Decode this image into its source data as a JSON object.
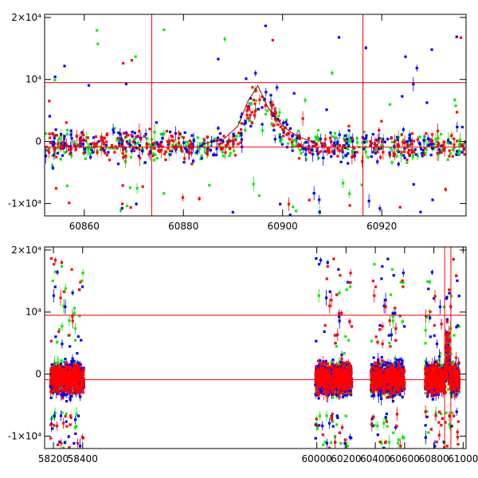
{
  "colors": {
    "red": "#ff0000",
    "green": "#00ee00",
    "blue": "#0000ff",
    "axis": "#000000"
  },
  "chart_data": [
    {
      "type": "scatter",
      "panel": "top",
      "xlim": [
        60852,
        60937
      ],
      "ylim": [
        -12000,
        20500
      ],
      "xticks": [
        60860,
        60880,
        60900,
        60920
      ],
      "xtick_labels": [
        "60860",
        "60880",
        "60900",
        "60920"
      ],
      "yticks": [
        -10000,
        0,
        10000,
        20000
      ],
      "ytick_labels": [
        "-1×10⁴",
        "0",
        "10⁴",
        "2×10⁴"
      ],
      "hlines": [
        9500,
        -900
      ],
      "vlines": [
        60873.6,
        60916.2
      ],
      "legend": "none",
      "grid": false,
      "series": [
        {
          "color": "green",
          "density": "dense around baseline, scattered outliers"
        },
        {
          "color": "blue",
          "density": "dense around baseline, scattered outliers"
        },
        {
          "color": "red",
          "density": "dense around baseline, flare peak near 60895"
        }
      ],
      "flare": {
        "peak_x": 60895,
        "peak_y": 9000
      },
      "envelope_curve": [
        [
          60884,
          -400
        ],
        [
          60888,
          300
        ],
        [
          60891,
          2500
        ],
        [
          60893,
          6500
        ],
        [
          60895,
          9000
        ],
        [
          60897,
          5500
        ],
        [
          60900,
          2500
        ],
        [
          60903,
          800
        ],
        [
          60907,
          -300
        ]
      ]
    },
    {
      "type": "scatter",
      "panel": "bottom",
      "xlim": [
        58140,
        61020
      ],
      "ylim": [
        -12000,
        20500
      ],
      "xticks": [
        58200,
        58400,
        60000,
        60200,
        60400,
        60600,
        60800,
        61000
      ],
      "xtick_labels": [
        "58200",
        "58400",
        "60000",
        "60200",
        "60400",
        "60600",
        "60800",
        "61000"
      ],
      "yticks": [
        -10000,
        0,
        10000,
        20000
      ],
      "ytick_labels": [
        "-1×10⁴",
        "0",
        "10⁴",
        "2×10⁴"
      ],
      "hlines": [
        9500,
        -900
      ],
      "vlines": [
        60873.6,
        60916.2
      ],
      "legend": "none",
      "grid": false,
      "seasons": [
        [
          58180,
          58410
        ],
        [
          59990,
          60240
        ],
        [
          60370,
          60600
        ],
        [
          60740,
          60975
        ]
      ],
      "series": [
        {
          "color": "green"
        },
        {
          "color": "blue"
        },
        {
          "color": "red"
        }
      ]
    }
  ]
}
